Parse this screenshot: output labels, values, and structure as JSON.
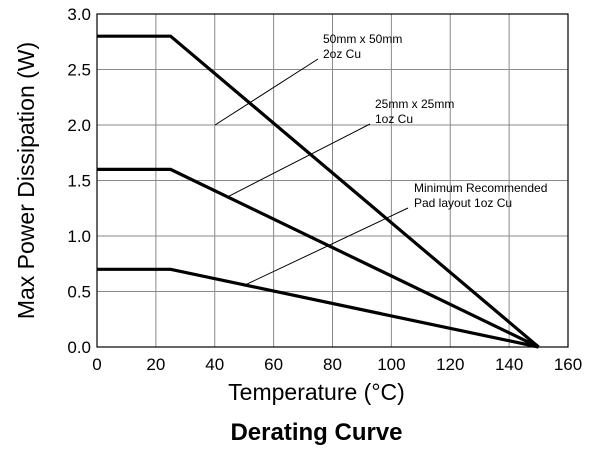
{
  "chart_data": {
    "type": "line",
    "title": "Derating Curve",
    "xlabel": "Temperature (°C)",
    "ylabel": "Max Power Dissipation (W)",
    "xlim": [
      0,
      160
    ],
    "ylim": [
      0,
      3.0
    ],
    "xticks": [
      "0",
      "20",
      "40",
      "60",
      "80",
      "100",
      "120",
      "140",
      "160"
    ],
    "yticks": [
      "0.0",
      "0.5",
      "1.0",
      "1.5",
      "2.0",
      "2.5",
      "3.0"
    ],
    "grid": true,
    "series": [
      {
        "x": [
          0,
          25,
          150
        ],
        "y": [
          2.8,
          2.8,
          0
        ]
      },
      {
        "x": [
          0,
          25,
          150
        ],
        "y": [
          1.6,
          1.6,
          0
        ]
      },
      {
        "x": [
          0,
          25,
          150
        ],
        "y": [
          0.7,
          0.7,
          0
        ]
      }
    ],
    "annotations": [
      {
        "lines": [
          "50mm x 50mm",
          "2oz Cu"
        ],
        "target": [
          60,
          2.0
        ]
      },
      {
        "lines": [
          "25mm x 25mm",
          "1oz Cu"
        ],
        "target": [
          35,
          1.35
        ]
      },
      {
        "lines": [
          "Minimum Recommended",
          "Pad layout 1oz Cu"
        ],
        "target": [
          40,
          0.55
        ]
      }
    ]
  }
}
